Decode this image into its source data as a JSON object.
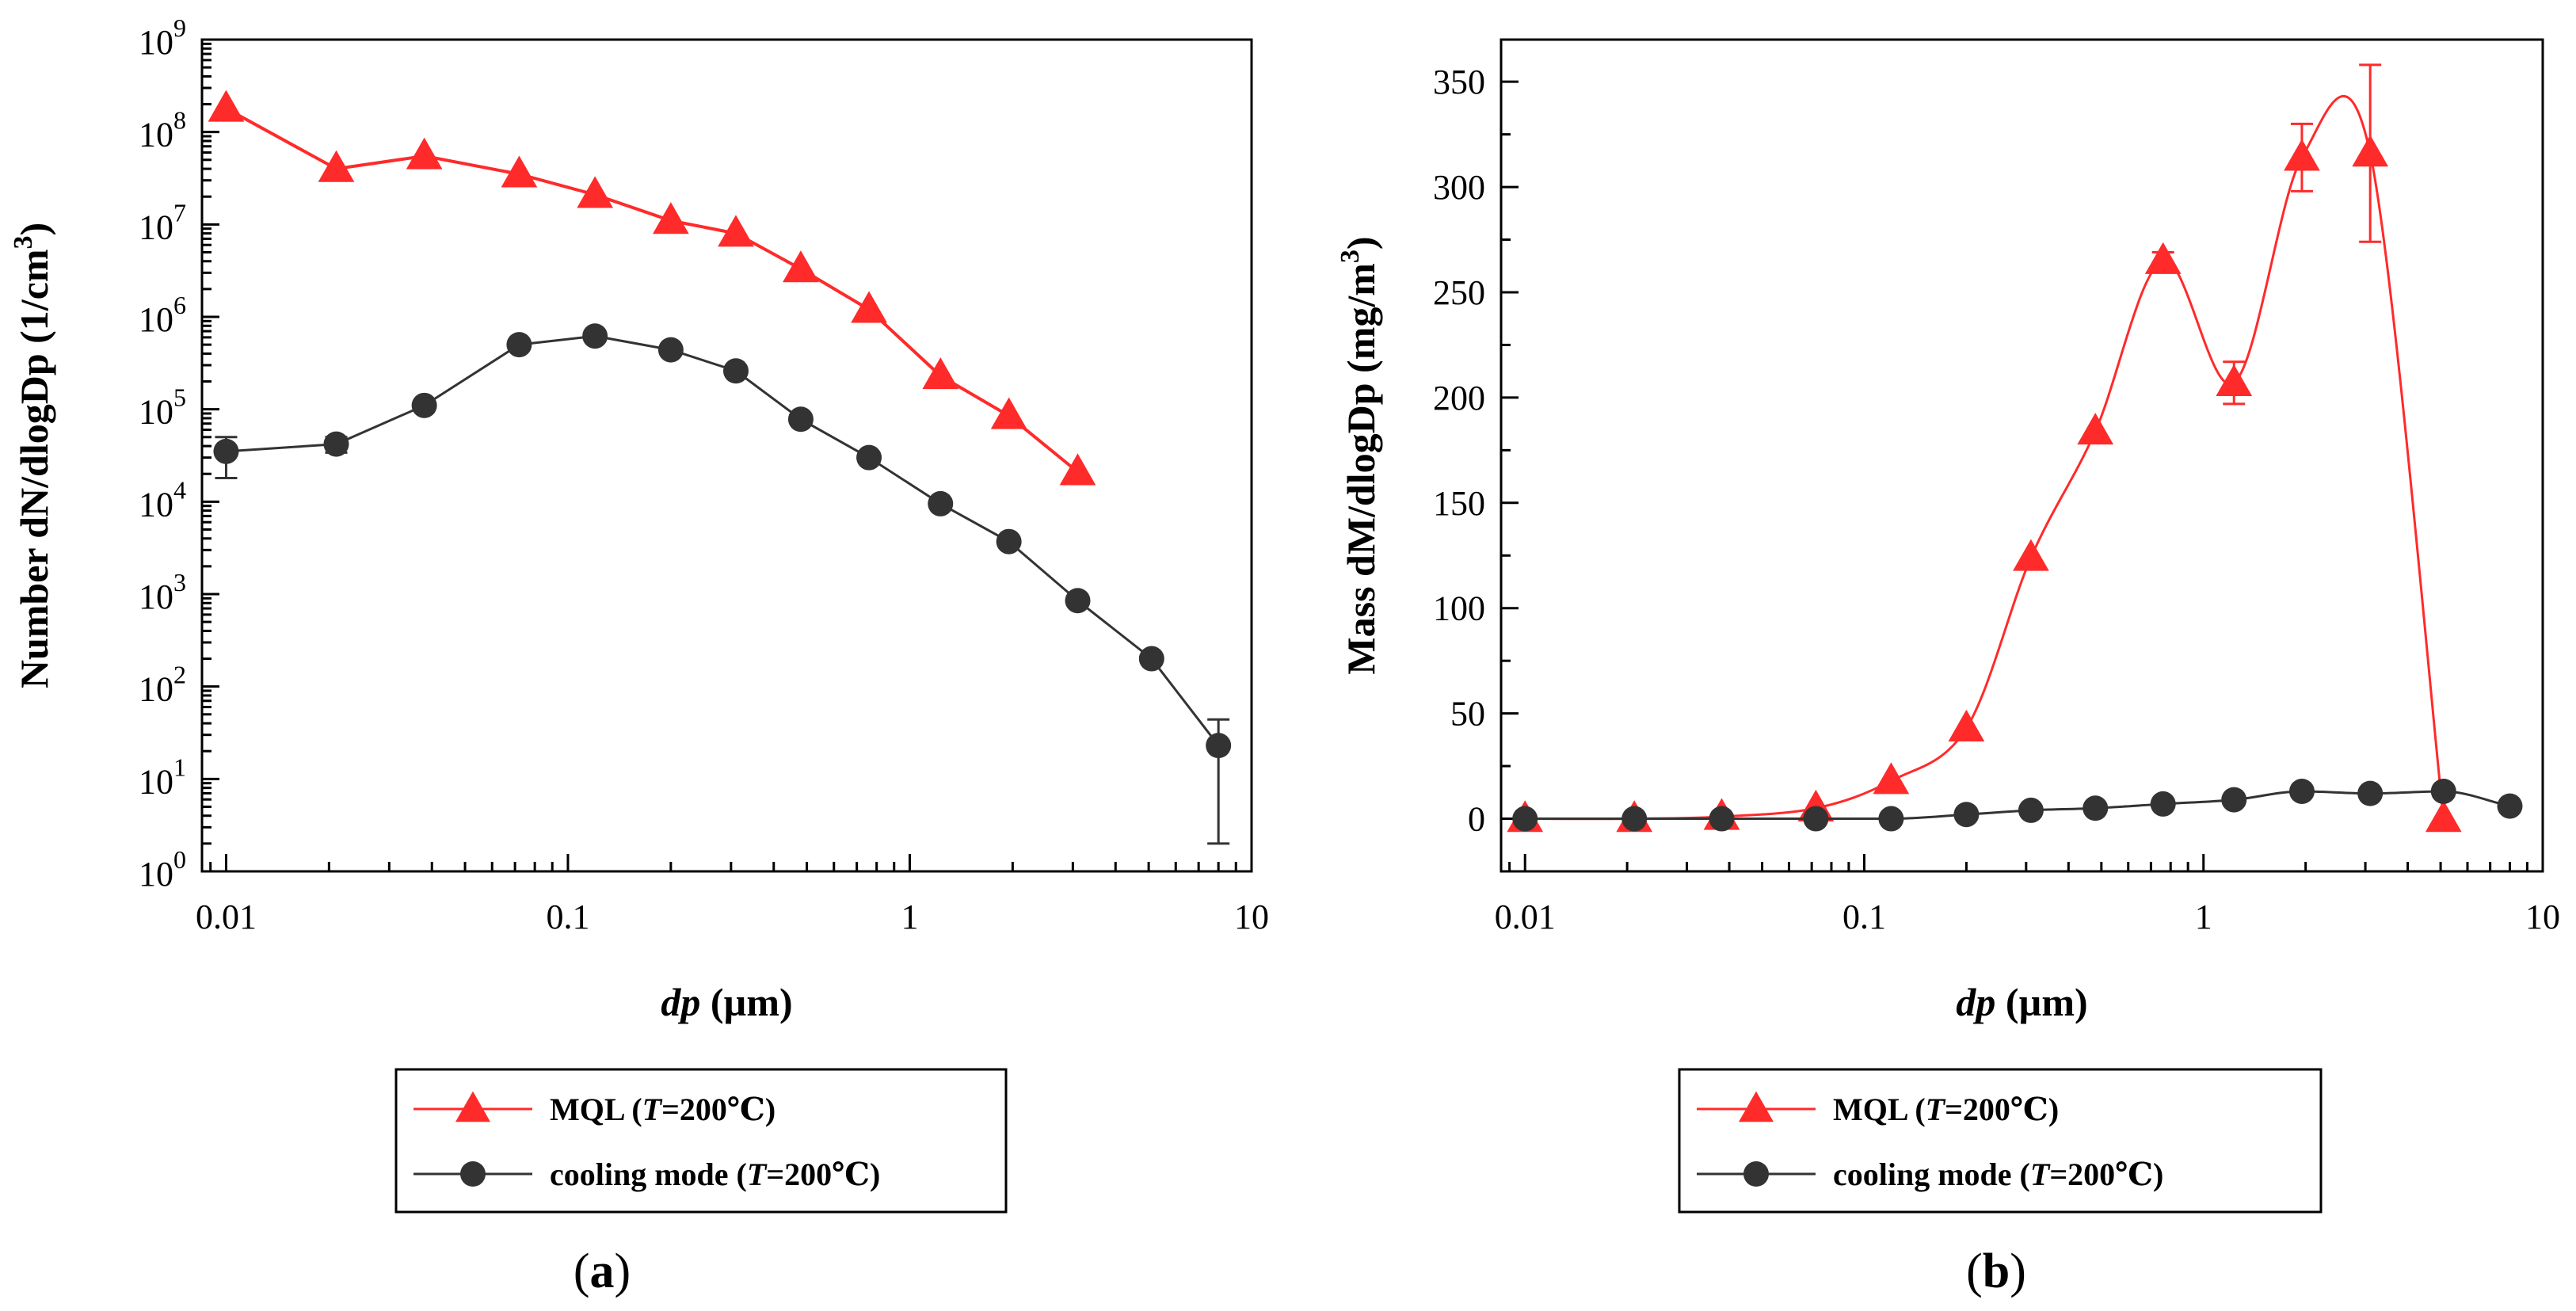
{
  "colors": {
    "mql": "#ff2a2a",
    "cooling": "#333333",
    "axis": "#000000"
  },
  "chart_data": [
    {
      "panel": "a",
      "panel_label": {
        "open": "(",
        "letter": "a",
        "close": ")"
      },
      "type": "line",
      "x_scale": "log",
      "y_scale": "log",
      "xlim": [
        0.0085,
        10
      ],
      "ylim": [
        1,
        1000000000
      ],
      "x_ticks": [
        {
          "value": 0.01,
          "label": "0.01"
        },
        {
          "value": 0.1,
          "label": "0.1"
        },
        {
          "value": 1,
          "label": "1"
        },
        {
          "value": 10,
          "label": "10"
        }
      ],
      "y_ticks": [
        {
          "value": 1,
          "base": "10",
          "exp": "0"
        },
        {
          "value": 10,
          "base": "10",
          "exp": "1"
        },
        {
          "value": 100,
          "base": "10",
          "exp": "2"
        },
        {
          "value": 1000,
          "base": "10",
          "exp": "3"
        },
        {
          "value": 10000,
          "base": "10",
          "exp": "4"
        },
        {
          "value": 100000,
          "base": "10",
          "exp": "5"
        },
        {
          "value": 1000000,
          "base": "10",
          "exp": "6"
        },
        {
          "value": 10000000,
          "base": "10",
          "exp": "7"
        },
        {
          "value": 100000000,
          "base": "10",
          "exp": "8"
        },
        {
          "value": 1000000000,
          "base": "10",
          "exp": "9"
        }
      ],
      "xlabel": {
        "italic": "dp",
        "rest": " (µm)"
      },
      "ylabel": {
        "main": "Number dN/dlogDp (1/cm",
        "sup": "3",
        "end": ")"
      },
      "series": [
        {
          "name": "MQL",
          "legend": {
            "prefix": "MQL (",
            "italic": "T",
            "suffix": "=200℃)"
          },
          "color_key": "mql",
          "marker": "triangle",
          "smooth": false,
          "x": [
            0.01,
            0.021,
            0.038,
            0.072,
            0.12,
            0.2,
            0.31,
            0.48,
            0.76,
            1.23,
            1.95,
            3.1
          ],
          "y": [
            180000000,
            40000000,
            55000000,
            35000000,
            21000000,
            11000000,
            8000000,
            3300000,
            1200000,
            230000,
            85000,
            21000
          ],
          "err": [
            0,
            0,
            0,
            0,
            0,
            0,
            0,
            0,
            0,
            0,
            0,
            0
          ]
        },
        {
          "name": "cooling mode",
          "legend": {
            "prefix": "cooling mode (",
            "italic": "T",
            "suffix": "=200℃)"
          },
          "color_key": "cooling",
          "marker": "circle",
          "smooth": false,
          "x": [
            0.01,
            0.021,
            0.038,
            0.072,
            0.12,
            0.2,
            0.31,
            0.48,
            0.76,
            1.23,
            1.95,
            3.1,
            5.1,
            8.0
          ],
          "y": [
            35000,
            42000,
            110000,
            500000,
            620000,
            440000,
            260000,
            78000,
            30000,
            9500,
            3700,
            850,
            200,
            23
          ],
          "err_lo": [
            17000,
            8000,
            0,
            0,
            0,
            0,
            0,
            0,
            0,
            0,
            0,
            0,
            0,
            21
          ],
          "err_hi": [
            15000,
            8000,
            0,
            0,
            0,
            0,
            0,
            0,
            0,
            0,
            0,
            0,
            0,
            21
          ]
        }
      ]
    },
    {
      "panel": "b",
      "panel_label": {
        "open": "(",
        "letter": "b",
        "close": ")"
      },
      "type": "line",
      "x_scale": "log",
      "y_scale": "linear",
      "xlim": [
        0.0085,
        10
      ],
      "ylim": [
        -25,
        370
      ],
      "x_ticks": [
        {
          "value": 0.01,
          "label": "0.01"
        },
        {
          "value": 0.1,
          "label": "0.1"
        },
        {
          "value": 1,
          "label": "1"
        },
        {
          "value": 10,
          "label": "10"
        }
      ],
      "y_ticks": [
        {
          "value": 0,
          "label": "0"
        },
        {
          "value": 50,
          "label": "50"
        },
        {
          "value": 100,
          "label": "100"
        },
        {
          "value": 150,
          "label": "150"
        },
        {
          "value": 200,
          "label": "200"
        },
        {
          "value": 250,
          "label": "250"
        },
        {
          "value": 300,
          "label": "300"
        },
        {
          "value": 350,
          "label": "350"
        }
      ],
      "xlabel": {
        "italic": "dp",
        "rest": " (µm)"
      },
      "ylabel": {
        "main": "Mass dM/dlogDp (mg/m",
        "sup": "3",
        "end": ")"
      },
      "series": [
        {
          "name": "MQL",
          "legend": {
            "prefix": "MQL (",
            "italic": "T",
            "suffix": "=200℃)"
          },
          "color_key": "mql",
          "marker": "triangle",
          "smooth": true,
          "x": [
            0.01,
            0.021,
            0.038,
            0.072,
            0.12,
            0.2,
            0.31,
            0.48,
            0.76,
            1.23,
            1.95,
            3.1,
            5.1
          ],
          "y": [
            0,
            0,
            1,
            5,
            18,
            43,
            124,
            184,
            265,
            207,
            314,
            316,
            0
          ],
          "err": [
            0,
            0,
            0,
            0,
            0,
            0,
            0,
            0,
            4,
            10,
            16,
            42,
            0
          ]
        },
        {
          "name": "cooling mode",
          "legend": {
            "prefix": "cooling mode (",
            "italic": "T",
            "suffix": "=200℃)"
          },
          "color_key": "cooling",
          "marker": "circle",
          "smooth": true,
          "x": [
            0.01,
            0.021,
            0.038,
            0.072,
            0.12,
            0.2,
            0.31,
            0.48,
            0.76,
            1.23,
            1.95,
            3.1,
            5.1,
            8.0
          ],
          "y": [
            0,
            0,
            0,
            0,
            0,
            2,
            4,
            5,
            7,
            9,
            13,
            12,
            13,
            6
          ],
          "err": [
            0,
            0,
            0,
            0,
            0,
            0,
            0,
            0,
            0,
            0,
            0,
            0,
            0,
            0
          ]
        }
      ]
    }
  ]
}
